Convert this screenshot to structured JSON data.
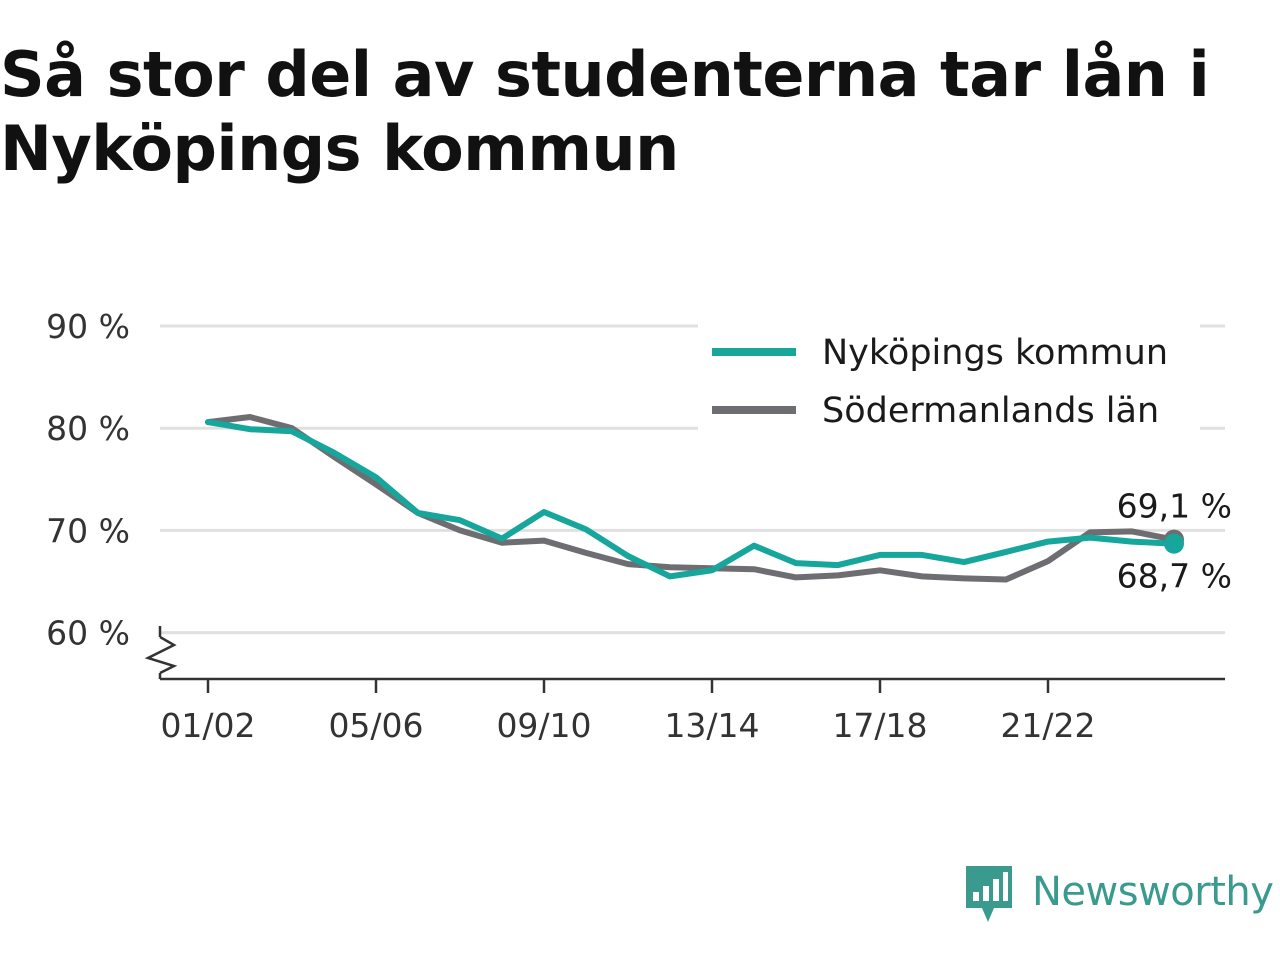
{
  "title": "Så stor del av studenterna tar lån i Nyköpings kommun",
  "brand": {
    "name": "Newsworthy",
    "icon": "newsworthy-logo-icon"
  },
  "colors": {
    "primary": "#16a69c",
    "secondary": "#6e6e72",
    "grid": "#e0e0e0",
    "axis": "#333333",
    "brand": "#3a9a8e"
  },
  "chart_data": {
    "type": "line",
    "x": [
      "01/02",
      "02/03",
      "03/04",
      "04/05",
      "05/06",
      "06/07",
      "07/08",
      "08/09",
      "09/10",
      "10/11",
      "11/12",
      "12/13",
      "13/14",
      "14/15",
      "15/16",
      "16/17",
      "17/18",
      "18/19",
      "19/20",
      "20/21",
      "21/22",
      "22/23",
      "23/24",
      "24/25"
    ],
    "xticks": [
      "01/02",
      "05/06",
      "09/10",
      "13/14",
      "17/18",
      "21/22"
    ],
    "yticks": [
      60,
      70,
      80,
      90
    ],
    "ytick_labels": [
      "60 %",
      "70 %",
      "80 %",
      "90 %"
    ],
    "ylim": [
      55.5,
      90
    ],
    "grid": true,
    "legend_position": "top-right",
    "series": [
      {
        "name": "Nyköpings kommun",
        "color": "#16a69c",
        "values": [
          80.6,
          79.9,
          79.7,
          77.6,
          75.2,
          71.7,
          71.0,
          69.2,
          71.8,
          70.1,
          67.5,
          65.5,
          66.1,
          68.5,
          66.8,
          66.6,
          67.6,
          67.6,
          66.9,
          67.9,
          68.9,
          69.3,
          68.9,
          68.7
        ],
        "end_label": "68,7 %"
      },
      {
        "name": "Södermanlands län",
        "color": "#6e6e72",
        "values": [
          80.6,
          81.1,
          80.0,
          77.2,
          74.5,
          71.7,
          70.0,
          68.8,
          69.0,
          67.8,
          66.7,
          66.4,
          66.3,
          66.2,
          65.4,
          65.6,
          66.1,
          65.5,
          65.3,
          65.2,
          67.0,
          69.8,
          69.9,
          69.1
        ],
        "end_label": "69,1 %"
      }
    ]
  }
}
